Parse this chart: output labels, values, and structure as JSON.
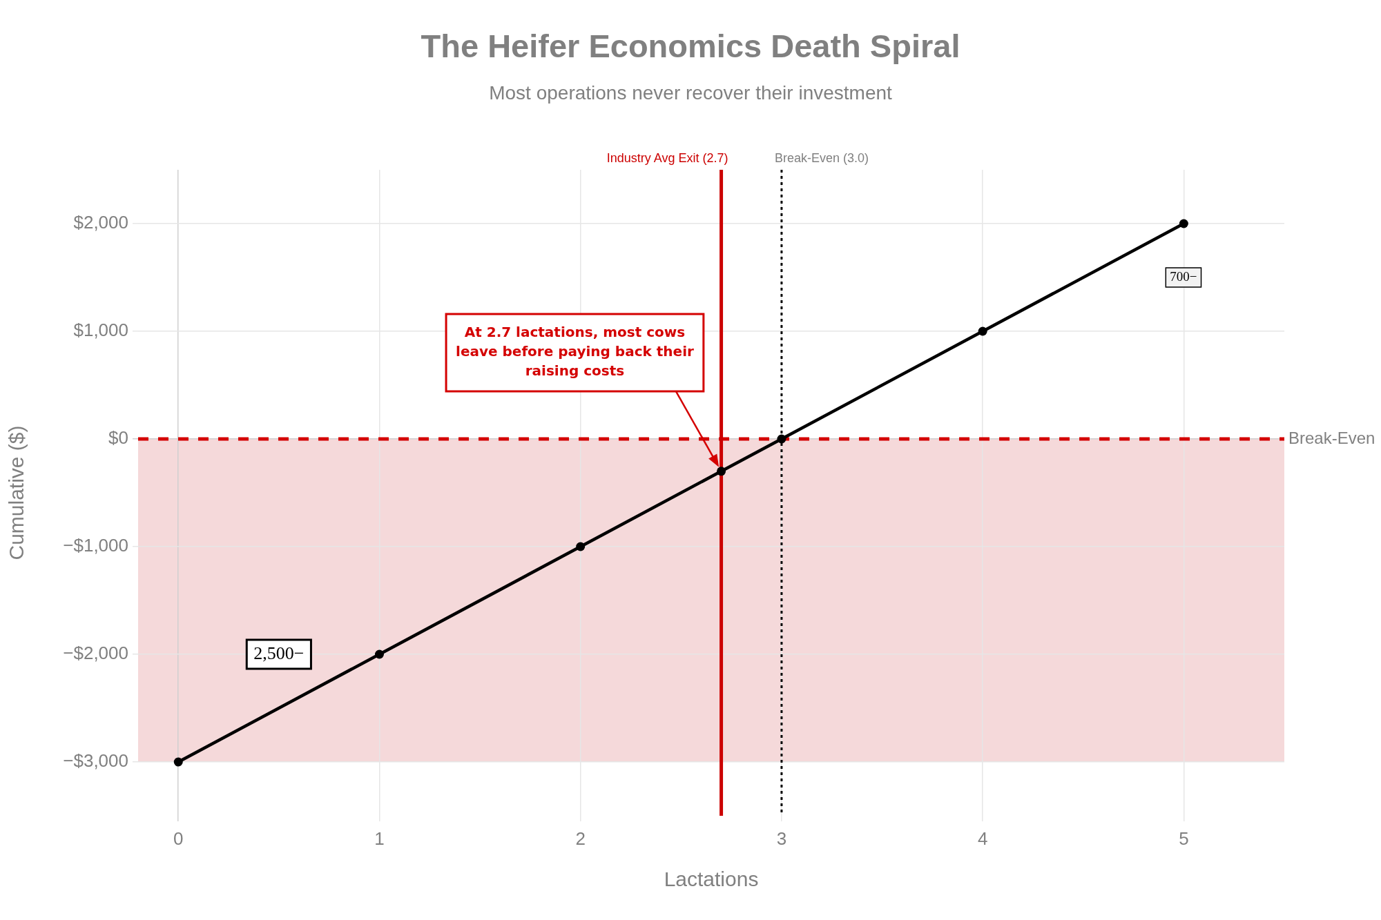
{
  "chart_data": {
    "type": "line",
    "title": "The Heifer Economics Death Spiral",
    "subtitle": "Most operations never recover their investment",
    "xlabel": "Lactations",
    "ylabel": "Cumulative ($)",
    "x": [
      0,
      1,
      2,
      2.7,
      3,
      4,
      5
    ],
    "series": [
      {
        "color": "#000000",
        "values": [
          -3000,
          -2000,
          -1000,
          -300,
          0,
          1000,
          2000
        ]
      }
    ],
    "xlim": [
      -0.2,
      5.5
    ],
    "xticks": [
      0,
      1,
      2,
      3,
      4,
      5
    ],
    "ylim": [
      -3500,
      2500
    ],
    "yticks": [
      {
        "value": -3000,
        "label": "−$3,000"
      },
      {
        "value": -2000,
        "label": "−$2,000"
      },
      {
        "value": -1000,
        "label": "−$1,000"
      },
      {
        "value": 0,
        "label": "$0"
      },
      {
        "value": 1000,
        "label": "$1,000"
      },
      {
        "value": 2000,
        "label": "$2,000"
      }
    ],
    "grid": true,
    "legend": false,
    "marker": "circle",
    "line_style": "solid",
    "ref_lines": [
      {
        "axis": "y",
        "value": 0,
        "label": "Break-Even",
        "color": "#d40000",
        "line_style": "dashed"
      },
      {
        "axis": "x",
        "value": 2.7,
        "label": "Industry Avg Exit (2.7)",
        "color": "#cc0000",
        "line_style": "solid"
      },
      {
        "axis": "x",
        "value": 3,
        "label": "Break-Even (3.0)",
        "color": "#000000",
        "line_style": "dotted"
      }
    ],
    "bands": [
      {
        "axis": "y",
        "from": -3000,
        "to": 0,
        "color": "#f5d9da"
      }
    ],
    "annotations": [
      "At 2.7 lactations, most cows leave before paying back their raising costs",
      "2,500−",
      "700−"
    ]
  }
}
